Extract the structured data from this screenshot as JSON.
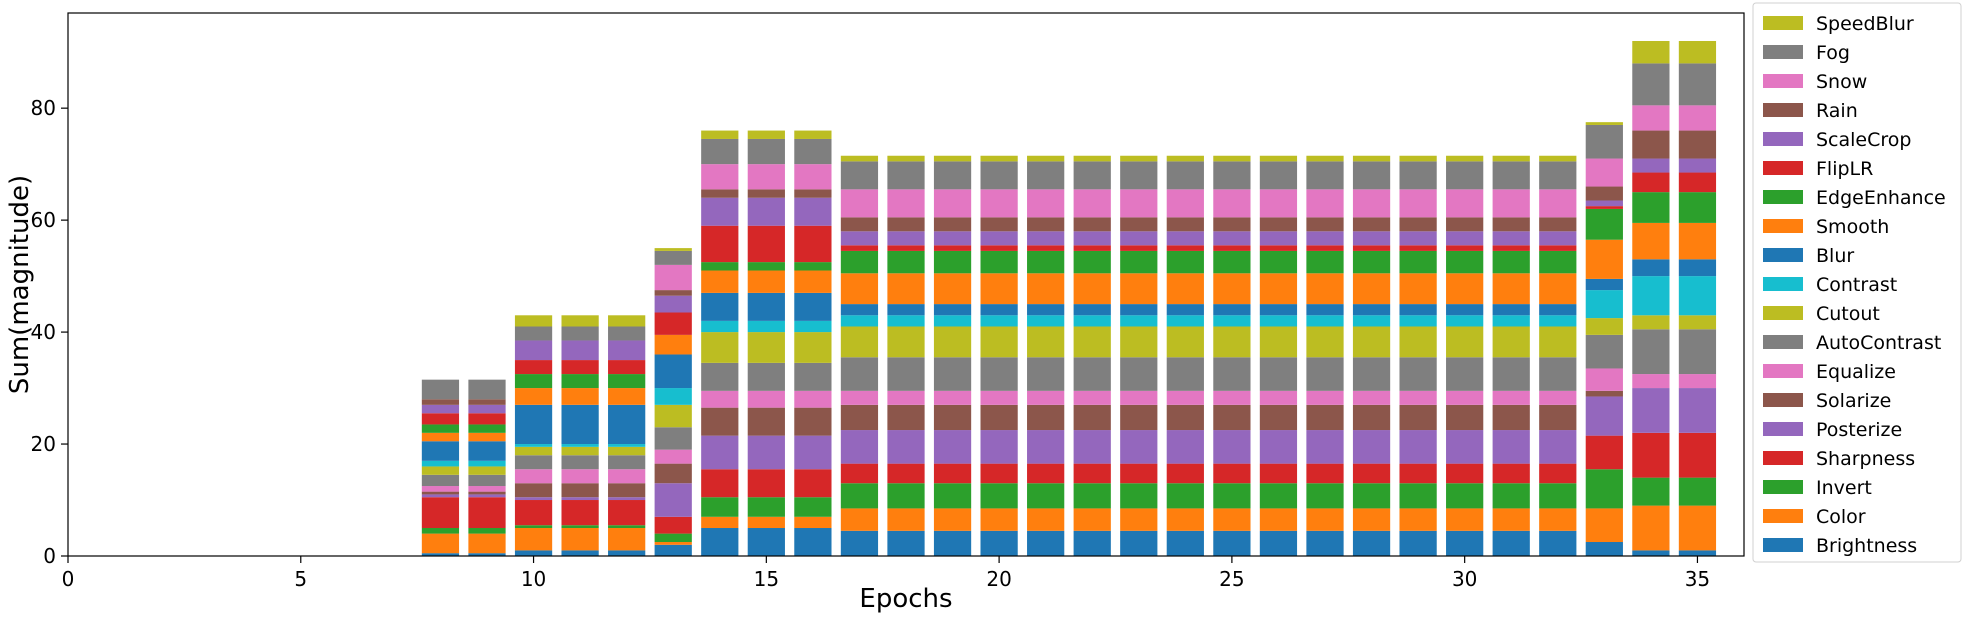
{
  "chart_data": {
    "type": "bar",
    "stacked": true,
    "title": "",
    "xlabel": "Epochs",
    "ylabel": "Sum(magnitude)",
    "xlim": [
      0,
      36
    ],
    "ylim": [
      0,
      97
    ],
    "xticks": [
      0,
      5,
      10,
      15,
      20,
      25,
      30,
      35
    ],
    "yticks": [
      0,
      20,
      40,
      60,
      80
    ],
    "grid": false,
    "legend_position": "outside-right",
    "x": [
      8,
      9,
      10,
      11,
      12,
      13,
      14,
      15,
      16,
      17,
      18,
      19,
      20,
      21,
      22,
      23,
      24,
      25,
      26,
      27,
      28,
      29,
      30,
      31,
      32,
      33,
      34,
      35
    ],
    "series": [
      {
        "name": "Brightness",
        "color": "#1f77b4",
        "values": [
          0.5,
          0.5,
          1.0,
          1.0,
          1.0,
          2.0,
          5.0,
          5.0,
          5.0,
          4.5,
          4.5,
          4.5,
          4.5,
          4.5,
          4.5,
          4.5,
          4.5,
          4.5,
          4.5,
          4.5,
          4.5,
          4.5,
          4.5,
          4.5,
          4.5,
          2.5,
          1.0,
          1.0
        ]
      },
      {
        "name": "Color",
        "color": "#ff7f0e",
        "values": [
          3.5,
          3.5,
          4.0,
          4.0,
          4.0,
          0.5,
          2.0,
          2.0,
          2.0,
          4.0,
          4.0,
          4.0,
          4.0,
          4.0,
          4.0,
          4.0,
          4.0,
          4.0,
          4.0,
          4.0,
          4.0,
          4.0,
          4.0,
          4.0,
          4.0,
          6.0,
          8.0,
          8.0
        ]
      },
      {
        "name": "Invert",
        "color": "#2ca02c",
        "values": [
          1.0,
          1.0,
          0.5,
          0.5,
          0.5,
          1.5,
          3.5,
          3.5,
          3.5,
          4.5,
          4.5,
          4.5,
          4.5,
          4.5,
          4.5,
          4.5,
          4.5,
          4.5,
          4.5,
          4.5,
          4.5,
          4.5,
          4.5,
          4.5,
          4.5,
          7.0,
          5.0,
          5.0
        ]
      },
      {
        "name": "Sharpness",
        "color": "#d62728",
        "values": [
          5.5,
          5.5,
          4.5,
          4.5,
          4.5,
          3.0,
          5.0,
          5.0,
          5.0,
          3.5,
          3.5,
          3.5,
          3.5,
          3.5,
          3.5,
          3.5,
          3.5,
          3.5,
          3.5,
          3.5,
          3.5,
          3.5,
          3.5,
          3.5,
          3.5,
          6.0,
          8.0,
          8.0
        ]
      },
      {
        "name": "Posterize",
        "color": "#9467bd",
        "values": [
          0.5,
          0.5,
          0.5,
          0.5,
          0.5,
          6.0,
          6.0,
          6.0,
          6.0,
          6.0,
          6.0,
          6.0,
          6.0,
          6.0,
          6.0,
          6.0,
          6.0,
          6.0,
          6.0,
          6.0,
          6.0,
          6.0,
          6.0,
          6.0,
          6.0,
          7.0,
          8.0,
          8.0
        ]
      },
      {
        "name": "Solarize",
        "color": "#8c564b",
        "values": [
          0.5,
          0.5,
          2.5,
          2.5,
          2.5,
          3.5,
          5.0,
          5.0,
          5.0,
          4.5,
          4.5,
          4.5,
          4.5,
          4.5,
          4.5,
          4.5,
          4.5,
          4.5,
          4.5,
          4.5,
          4.5,
          4.5,
          4.5,
          4.5,
          4.5,
          1.0,
          0.0,
          0.0
        ]
      },
      {
        "name": "Equalize",
        "color": "#e377c2",
        "values": [
          1.0,
          1.0,
          2.5,
          2.5,
          2.5,
          2.5,
          3.0,
          3.0,
          3.0,
          2.5,
          2.5,
          2.5,
          2.5,
          2.5,
          2.5,
          2.5,
          2.5,
          2.5,
          2.5,
          2.5,
          2.5,
          2.5,
          2.5,
          2.5,
          2.5,
          4.0,
          2.5,
          2.5
        ]
      },
      {
        "name": "AutoContrast",
        "color": "#7f7f7f",
        "values": [
          2.0,
          2.0,
          2.5,
          2.5,
          2.5,
          4.0,
          5.0,
          5.0,
          5.0,
          6.0,
          6.0,
          6.0,
          6.0,
          6.0,
          6.0,
          6.0,
          6.0,
          6.0,
          6.0,
          6.0,
          6.0,
          6.0,
          6.0,
          6.0,
          6.0,
          6.0,
          8.0,
          8.0
        ]
      },
      {
        "name": "Cutout",
        "color": "#bcbd22",
        "values": [
          1.5,
          1.5,
          1.5,
          1.5,
          1.5,
          4.0,
          5.5,
          5.5,
          5.5,
          5.5,
          5.5,
          5.5,
          5.5,
          5.5,
          5.5,
          5.5,
          5.5,
          5.5,
          5.5,
          5.5,
          5.5,
          5.5,
          5.5,
          5.5,
          5.5,
          3.0,
          2.5,
          2.5
        ]
      },
      {
        "name": "Contrast",
        "color": "#17becf",
        "values": [
          1.0,
          1.0,
          0.5,
          0.5,
          0.5,
          3.0,
          2.0,
          2.0,
          2.0,
          2.0,
          2.0,
          2.0,
          2.0,
          2.0,
          2.0,
          2.0,
          2.0,
          2.0,
          2.0,
          2.0,
          2.0,
          2.0,
          2.0,
          2.0,
          2.0,
          5.0,
          7.0,
          7.0
        ]
      },
      {
        "name": "Blur",
        "color": "#1f77b4",
        "values": [
          3.5,
          3.5,
          7.0,
          7.0,
          7.0,
          6.0,
          5.0,
          5.0,
          5.0,
          2.0,
          2.0,
          2.0,
          2.0,
          2.0,
          2.0,
          2.0,
          2.0,
          2.0,
          2.0,
          2.0,
          2.0,
          2.0,
          2.0,
          2.0,
          2.0,
          2.0,
          3.0,
          3.0
        ]
      },
      {
        "name": "Smooth",
        "color": "#ff7f0e",
        "values": [
          1.5,
          1.5,
          3.0,
          3.0,
          3.0,
          3.5,
          4.0,
          4.0,
          4.0,
          5.5,
          5.5,
          5.5,
          5.5,
          5.5,
          5.5,
          5.5,
          5.5,
          5.5,
          5.5,
          5.5,
          5.5,
          5.5,
          5.5,
          5.5,
          5.5,
          7.0,
          6.5,
          6.5
        ]
      },
      {
        "name": "EdgeEnhance",
        "color": "#2ca02c",
        "values": [
          1.5,
          1.5,
          2.5,
          2.5,
          2.5,
          0.0,
          1.5,
          1.5,
          1.5,
          4.0,
          4.0,
          4.0,
          4.0,
          4.0,
          4.0,
          4.0,
          4.0,
          4.0,
          4.0,
          4.0,
          4.0,
          4.0,
          4.0,
          4.0,
          4.0,
          5.5,
          5.5,
          5.5
        ]
      },
      {
        "name": "FlipLR",
        "color": "#d62728",
        "values": [
          2.0,
          2.0,
          2.5,
          2.5,
          2.5,
          4.0,
          6.5,
          6.5,
          6.5,
          1.0,
          1.0,
          1.0,
          1.0,
          1.0,
          1.0,
          1.0,
          1.0,
          1.0,
          1.0,
          1.0,
          1.0,
          1.0,
          1.0,
          1.0,
          1.0,
          0.5,
          3.5,
          3.5
        ]
      },
      {
        "name": "ScaleCrop",
        "color": "#9467bd",
        "values": [
          1.5,
          1.5,
          3.5,
          3.5,
          3.5,
          3.0,
          5.0,
          5.0,
          5.0,
          2.5,
          2.5,
          2.5,
          2.5,
          2.5,
          2.5,
          2.5,
          2.5,
          2.5,
          2.5,
          2.5,
          2.5,
          2.5,
          2.5,
          2.5,
          2.5,
          1.0,
          2.5,
          2.5
        ]
      },
      {
        "name": "Rain",
        "color": "#8c564b",
        "values": [
          1.0,
          1.0,
          0.0,
          0.0,
          0.0,
          1.0,
          1.5,
          1.5,
          1.5,
          2.5,
          2.5,
          2.5,
          2.5,
          2.5,
          2.5,
          2.5,
          2.5,
          2.5,
          2.5,
          2.5,
          2.5,
          2.5,
          2.5,
          2.5,
          2.5,
          2.5,
          5.0,
          5.0
        ]
      },
      {
        "name": "Snow",
        "color": "#e377c2",
        "values": [
          0.0,
          0.0,
          0.0,
          0.0,
          0.0,
          4.5,
          4.5,
          4.5,
          4.5,
          5.0,
          5.0,
          5.0,
          5.0,
          5.0,
          5.0,
          5.0,
          5.0,
          5.0,
          5.0,
          5.0,
          5.0,
          5.0,
          5.0,
          5.0,
          5.0,
          5.0,
          4.5,
          4.5
        ]
      },
      {
        "name": "Fog",
        "color": "#7f7f7f",
        "values": [
          3.5,
          3.5,
          2.5,
          2.5,
          2.5,
          2.5,
          4.5,
          4.5,
          4.5,
          5.0,
          5.0,
          5.0,
          5.0,
          5.0,
          5.0,
          5.0,
          5.0,
          5.0,
          5.0,
          5.0,
          5.0,
          5.0,
          5.0,
          5.0,
          5.0,
          6.0,
          7.5,
          7.5
        ]
      },
      {
        "name": "SpeedBlur",
        "color": "#bcbd22",
        "values": [
          0.0,
          0.0,
          2.0,
          2.0,
          2.0,
          0.5,
          1.5,
          1.5,
          1.5,
          1.0,
          1.0,
          1.0,
          1.0,
          1.0,
          1.0,
          1.0,
          1.0,
          1.0,
          1.0,
          1.0,
          1.0,
          1.0,
          1.0,
          1.0,
          1.0,
          0.5,
          4.0,
          4.0
        ]
      }
    ]
  }
}
